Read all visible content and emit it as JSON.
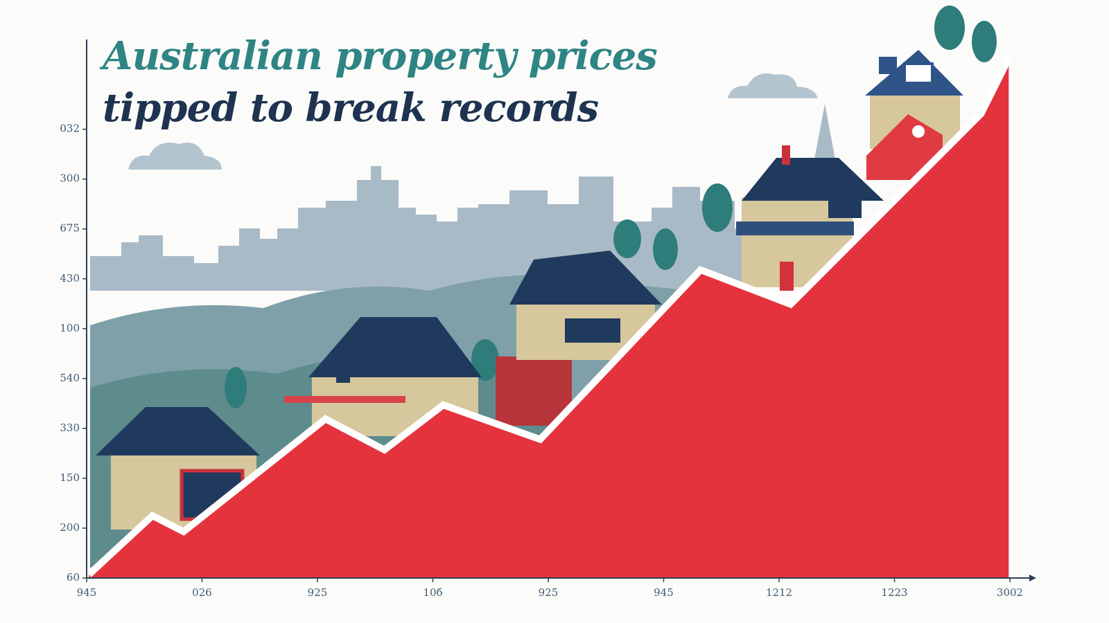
{
  "chart_data": {
    "type": "area",
    "title": [
      "Australian property prices",
      "tipped to break records"
    ],
    "title_colors": [
      "#2e8584",
      "#1e3350"
    ],
    "xticks": [
      {
        "value": 0,
        "label": "945"
      },
      {
        "value": 1,
        "label": "026"
      },
      {
        "value": 2,
        "label": "925"
      },
      {
        "value": 3,
        "label": "10б"
      },
      {
        "value": 4,
        "label": "925"
      },
      {
        "value": 5,
        "label": "945"
      },
      {
        "value": 6,
        "label": "1212"
      },
      {
        "value": 7,
        "label": "1223"
      },
      {
        "value": 8,
        "label": "3002"
      }
    ],
    "yticks": [
      {
        "value": 0,
        "label": "60"
      },
      {
        "value": 1,
        "label": "200"
      },
      {
        "value": 2,
        "label": "150"
      },
      {
        "value": 3,
        "label": "330"
      },
      {
        "value": 4,
        "label": "540"
      },
      {
        "value": 5,
        "label": "100"
      },
      {
        "value": 6,
        "label": "430"
      },
      {
        "value": 7,
        "label": "675"
      },
      {
        "value": 8,
        "label": "300"
      },
      {
        "value": 9,
        "label": "032"
      }
    ],
    "xlim": [
      0,
      8
    ],
    "ylim": [
      0,
      10.8
    ],
    "series": [
      {
        "color": "#e5333d",
        "x": [
          0.02,
          0.57,
          0.84,
          2.07,
          2.58,
          3.09,
          3.93,
          5.32,
          6.1,
          7.75,
          7.99
        ],
        "values": [
          0.07,
          1.25,
          0.93,
          3.19,
          2.57,
          3.47,
          2.78,
          6.18,
          5.49,
          9.31,
          10.42
        ]
      }
    ]
  }
}
